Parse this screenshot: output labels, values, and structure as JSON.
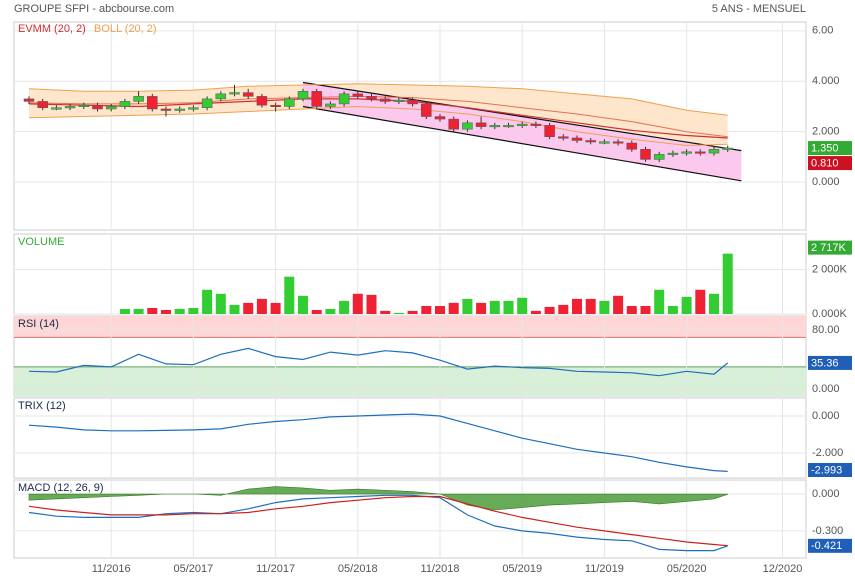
{
  "chart_data": [
    {
      "type": "candlestick",
      "title": "GROUPE SFPI - abcbourse.com",
      "subtitle": "5 ANS - MENSUEL",
      "up_color": "#33cc33",
      "down_color": "#ee2233",
      "x": [
        "2016-05",
        "2016-06",
        "2016-07",
        "2016-08",
        "2016-09",
        "2016-10",
        "2016-11",
        "2016-12",
        "2017-01",
        "2017-02",
        "2017-03",
        "2017-04",
        "2017-05",
        "2017-06",
        "2017-07",
        "2017-08",
        "2017-09",
        "2017-10",
        "2017-11",
        "2017-12",
        "2018-01",
        "2018-02",
        "2018-03",
        "2018-04",
        "2018-05",
        "2018-06",
        "2018-07",
        "2018-08",
        "2018-09",
        "2018-10",
        "2018-11",
        "2018-12",
        "2019-01",
        "2019-02",
        "2019-03",
        "2019-04",
        "2019-05",
        "2019-06",
        "2019-07",
        "2019-08",
        "2019-09",
        "2019-10",
        "2019-11",
        "2019-12",
        "2020-01",
        "2020-02",
        "2020-03",
        "2020-04",
        "2020-05",
        "2020-06",
        "2020-07",
        "2020-08"
      ],
      "open": [
        3.3,
        3.2,
        2.95,
        2.95,
        3.0,
        3.05,
        2.9,
        3.0,
        3.2,
        3.4,
        2.9,
        2.85,
        2.9,
        2.95,
        3.3,
        3.5,
        3.55,
        3.4,
        3.05,
        3.0,
        3.3,
        3.6,
        3.0,
        3.1,
        3.5,
        3.4,
        3.3,
        3.2,
        3.25,
        3.1,
        2.6,
        2.5,
        2.1,
        2.35,
        2.2,
        2.25,
        2.25,
        2.3,
        2.25,
        1.8,
        1.75,
        1.65,
        1.6,
        1.6,
        1.55,
        1.3,
        0.9,
        1.1,
        1.15,
        1.2,
        1.15,
        1.3
      ],
      "high": [
        3.4,
        3.3,
        3.05,
        3.1,
        3.15,
        3.15,
        3.1,
        3.3,
        3.6,
        3.5,
        3.0,
        3.0,
        3.05,
        3.4,
        3.6,
        3.85,
        3.7,
        3.5,
        3.15,
        3.4,
        3.7,
        3.7,
        3.2,
        3.6,
        3.6,
        3.5,
        3.4,
        3.35,
        3.35,
        3.2,
        2.7,
        2.6,
        2.45,
        2.6,
        2.35,
        2.35,
        2.4,
        2.4,
        2.35,
        1.9,
        1.85,
        1.75,
        1.7,
        1.7,
        1.65,
        1.4,
        1.2,
        1.25,
        1.3,
        1.3,
        1.4,
        1.45
      ],
      "low": [
        3.1,
        2.85,
        2.85,
        2.85,
        2.9,
        2.8,
        2.8,
        2.9,
        3.1,
        2.8,
        2.6,
        2.75,
        2.8,
        2.85,
        3.2,
        3.4,
        3.3,
        2.95,
        2.8,
        2.9,
        3.2,
        2.9,
        2.9,
        3.0,
        3.3,
        3.2,
        3.1,
        3.1,
        3.0,
        2.5,
        2.4,
        2.0,
        2.0,
        2.1,
        2.1,
        2.15,
        2.15,
        2.15,
        1.7,
        1.65,
        1.55,
        1.5,
        1.5,
        1.45,
        1.2,
        0.8,
        0.8,
        1.0,
        1.05,
        1.05,
        1.05,
        1.2
      ],
      "close": [
        3.2,
        2.95,
        2.95,
        3.0,
        3.05,
        2.9,
        3.0,
        3.2,
        3.4,
        2.9,
        2.85,
        2.9,
        2.95,
        3.3,
        3.5,
        3.55,
        3.4,
        3.05,
        3.0,
        3.3,
        3.6,
        3.0,
        3.1,
        3.5,
        3.4,
        3.3,
        3.2,
        3.25,
        3.1,
        2.6,
        2.5,
        2.1,
        2.35,
        2.2,
        2.25,
        2.25,
        2.3,
        2.25,
        1.8,
        1.75,
        1.65,
        1.6,
        1.6,
        1.55,
        1.3,
        0.9,
        1.1,
        1.15,
        1.2,
        1.15,
        1.3,
        1.35
      ],
      "indicators": [
        {
          "name": "EVMM (20, 2)",
          "color": "#d03030",
          "x": [
            "2016-05",
            "2016-09",
            "2017-01",
            "2017-05",
            "2017-09",
            "2018-01",
            "2018-05",
            "2018-09",
            "2019-01",
            "2019-05",
            "2019-09",
            "2020-01",
            "2020-05",
            "2020-08"
          ],
          "values": [
            3.1,
            3.05,
            3.0,
            3.1,
            3.2,
            3.3,
            3.3,
            3.2,
            2.95,
            2.65,
            2.35,
            2.05,
            1.85,
            1.75
          ]
        },
        {
          "name": "BOLL (20, 2)",
          "color": "#f0a050",
          "fill": "#fde6cc",
          "middle_color": "#e87050",
          "x": [
            "2016-05",
            "2016-09",
            "2017-01",
            "2017-05",
            "2017-09",
            "2018-01",
            "2018-05",
            "2018-09",
            "2019-01",
            "2019-05",
            "2019-09",
            "2020-01",
            "2020-05",
            "2020-08"
          ],
          "upper": [
            3.7,
            3.6,
            3.6,
            3.65,
            3.8,
            3.85,
            3.9,
            3.85,
            3.8,
            3.7,
            3.5,
            3.3,
            2.85,
            2.65
          ],
          "middle": [
            3.15,
            3.1,
            3.1,
            3.15,
            3.3,
            3.35,
            3.4,
            3.35,
            3.2,
            2.95,
            2.7,
            2.4,
            2.0,
            1.8
          ],
          "lower": [
            2.55,
            2.6,
            2.65,
            2.7,
            2.8,
            2.9,
            3.0,
            2.9,
            2.7,
            2.4,
            2.0,
            1.7,
            1.45,
            1.5
          ]
        }
      ],
      "channel": {
        "color": "#111111",
        "fill": "#fbc9ee",
        "x": [
          "2018-01",
          "2020-09"
        ],
        "upper": [
          3.95,
          1.25
        ],
        "lower": [
          3.0,
          0.05
        ]
      },
      "ylim": [
        -1.9,
        6.35
      ],
      "yticks": [
        {
          "value": 6,
          "label": "6.00"
        },
        {
          "value": 4,
          "label": "4.000"
        },
        {
          "value": 2,
          "label": "2.000"
        },
        {
          "value": 0,
          "label": "0.000"
        }
      ],
      "last_labels": [
        {
          "value": 1.35,
          "label": "1.350",
          "color": "#33aa33"
        },
        {
          "value": 0.81,
          "label": "0.810",
          "color": "#cc1122"
        }
      ],
      "xticks": [
        {
          "value": "2016-11",
          "label": "11/2016"
        },
        {
          "value": "2017-05",
          "label": "05/2017"
        },
        {
          "value": "2017-11",
          "label": "11/2017"
        },
        {
          "value": "2018-05",
          "label": "05/2018"
        },
        {
          "value": "2018-11",
          "label": "11/2018"
        },
        {
          "value": "2019-05",
          "label": "05/2019"
        },
        {
          "value": "2019-11",
          "label": "11/2019"
        },
        {
          "value": "2020-05",
          "label": "05/2020"
        },
        {
          "value": "2020-12",
          "label": "12/2020"
        }
      ],
      "grid": true
    },
    {
      "type": "bar",
      "title": "VOLUME",
      "title_color": "#33aa33",
      "up_color": "#33cc33",
      "down_color": "#ee2233",
      "x": [
        "2016-12",
        "2017-01",
        "2017-02",
        "2017-03",
        "2017-04",
        "2017-05",
        "2017-06",
        "2017-07",
        "2017-08",
        "2017-09",
        "2017-10",
        "2017-11",
        "2017-12",
        "2018-01",
        "2018-02",
        "2018-03",
        "2018-04",
        "2018-05",
        "2018-06",
        "2018-07",
        "2018-08",
        "2018-09",
        "2018-10",
        "2018-11",
        "2018-12",
        "2019-01",
        "2019-02",
        "2019-03",
        "2019-04",
        "2019-05",
        "2019-06",
        "2019-07",
        "2019-08",
        "2019-09",
        "2019-10",
        "2019-11",
        "2019-12",
        "2020-01",
        "2020-02",
        "2020-03",
        "2020-04",
        "2020-05",
        "2020-06",
        "2020-07",
        "2020-08"
      ],
      "values": [
        230,
        230,
        270,
        180,
        230,
        270,
        1090,
        910,
        410,
        500,
        680,
        500,
        1680,
        820,
        180,
        230,
        590,
        910,
        860,
        140,
        50,
        140,
        360,
        360,
        500,
        680,
        500,
        590,
        590,
        730,
        140,
        320,
        410,
        680,
        680,
        590,
        820,
        360,
        360,
        1090,
        360,
        770,
        1090,
        910,
        2717
      ],
      "last_label": "2 717K",
      "label_color": "#33aa33",
      "ylim": [
        0,
        3600
      ],
      "yticks": [
        {
          "value": 2000,
          "label": "2 000K"
        },
        {
          "value": 0,
          "label": "0.000K"
        }
      ],
      "grid": true
    },
    {
      "type": "line",
      "title": "RSI (14)",
      "color": "#1f6fbf",
      "x": [
        "2016-05",
        "2016-07",
        "2016-09",
        "2016-11",
        "2017-01",
        "2017-03",
        "2017-05",
        "2017-07",
        "2017-09",
        "2017-11",
        "2018-01",
        "2018-03",
        "2018-05",
        "2018-07",
        "2018-09",
        "2018-11",
        "2019-01",
        "2019-03",
        "2019-05",
        "2019-07",
        "2019-09",
        "2019-11",
        "2020-01",
        "2020-03",
        "2020-05",
        "2020-07",
        "2020-08"
      ],
      "values": [
        24,
        23,
        32,
        30,
        47,
        34,
        33,
        47,
        55,
        44,
        40,
        50,
        46,
        52,
        49,
        39,
        27,
        31,
        29,
        28,
        24,
        23,
        22,
        18,
        24,
        20,
        35.36
      ],
      "overbought": 70,
      "oversold": 30,
      "overbought_color": "#ffd6d6",
      "oversold_color": "#d8efd8",
      "label_color": "#1f5fb8",
      "ylim": [
        -9.5,
        99
      ],
      "yticks": [
        {
          "value": 80,
          "label": "80.00"
        },
        {
          "value": 0,
          "label": "0.000"
        }
      ],
      "grid": true
    },
    {
      "type": "line",
      "title": "TRIX (12)",
      "color": "#1f6fbf",
      "x": [
        "2016-05",
        "2016-07",
        "2016-09",
        "2016-11",
        "2017-01",
        "2017-03",
        "2017-05",
        "2017-07",
        "2017-09",
        "2017-11",
        "2018-01",
        "2018-03",
        "2018-05",
        "2018-07",
        "2018-09",
        "2018-11",
        "2019-01",
        "2019-03",
        "2019-05",
        "2019-07",
        "2019-09",
        "2019-11",
        "2020-01",
        "2020-03",
        "2020-05",
        "2020-07",
        "2020-08"
      ],
      "values": [
        -0.5,
        -0.6,
        -0.75,
        -0.8,
        -0.8,
        -0.78,
        -0.75,
        -0.7,
        -0.45,
        -0.3,
        -0.2,
        -0.05,
        0,
        0.05,
        0.1,
        0,
        -0.4,
        -0.8,
        -1.2,
        -1.5,
        -1.8,
        -2.0,
        -2.2,
        -2.5,
        -2.75,
        -2.95,
        -2.993
      ],
      "label_color": "#1f5fb8",
      "ylim": [
        -3.35,
        0.97
      ],
      "yticks": [
        {
          "value": 0,
          "label": "0.000"
        },
        {
          "value": -2,
          "label": "-2.000"
        }
      ],
      "grid": true
    },
    {
      "type": "macd",
      "title": "MACD (12, 26, 9)",
      "x": [
        "2016-05",
        "2016-07",
        "2016-09",
        "2016-11",
        "2017-01",
        "2017-03",
        "2017-05",
        "2017-07",
        "2017-09",
        "2017-11",
        "2018-01",
        "2018-03",
        "2018-05",
        "2018-07",
        "2018-09",
        "2018-11",
        "2019-01",
        "2019-03",
        "2019-05",
        "2019-07",
        "2019-09",
        "2019-11",
        "2020-01",
        "2020-03",
        "2020-05",
        "2020-07",
        "2020-08"
      ],
      "series": [
        {
          "color": "#1f6fbf",
          "values": [
            -0.15,
            -0.18,
            -0.19,
            -0.19,
            -0.19,
            -0.16,
            -0.15,
            -0.16,
            -0.12,
            -0.07,
            -0.04,
            -0.03,
            -0.02,
            -0.01,
            -0.01,
            -0.03,
            -0.17,
            -0.26,
            -0.3,
            -0.32,
            -0.35,
            -0.37,
            -0.38,
            -0.45,
            -0.46,
            -0.46,
            -0.421
          ]
        },
        {
          "color": "#cc2020",
          "values": [
            -0.1,
            -0.13,
            -0.15,
            -0.17,
            -0.17,
            -0.17,
            -0.16,
            -0.16,
            -0.15,
            -0.12,
            -0.1,
            -0.07,
            -0.05,
            -0.03,
            -0.02,
            -0.02,
            -0.08,
            -0.14,
            -0.19,
            -0.23,
            -0.27,
            -0.3,
            -0.33,
            -0.36,
            -0.39,
            -0.41,
            -0.42
          ]
        }
      ],
      "histogram": {
        "color": "#4c9c3c",
        "values": [
          -0.05,
          -0.04,
          -0.03,
          -0.02,
          -0.01,
          0,
          0,
          -0.01,
          0.04,
          0.06,
          0.05,
          0.03,
          0.04,
          0.03,
          0.02,
          0,
          -0.09,
          -0.13,
          -0.11,
          -0.09,
          -0.08,
          -0.07,
          -0.06,
          -0.08,
          -0.06,
          -0.04,
          -0.002
        ]
      },
      "label_color": "#1f5fb8",
      "ylim": [
        -0.52,
        0.114
      ],
      "yticks": [
        {
          "value": 0,
          "label": "0.000"
        },
        {
          "value": -0.3,
          "label": "-0.300"
        }
      ],
      "grid": true
    }
  ]
}
